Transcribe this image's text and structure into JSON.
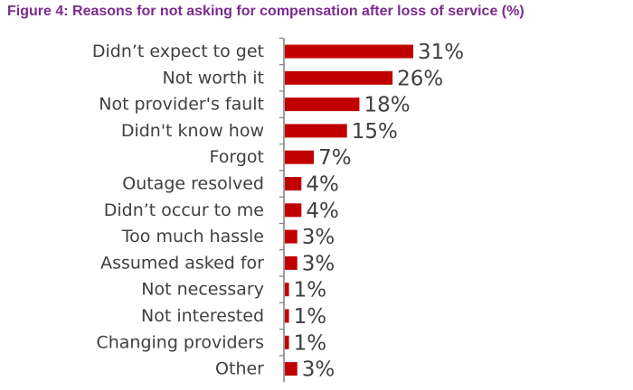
{
  "colors": {
    "title": "#7B2C8E",
    "bar": "#C00000",
    "axis": "#7F7F7F",
    "text": "#404040"
  },
  "chart_data": {
    "type": "bar",
    "orientation": "horizontal",
    "title": "Figure 4: Reasons for not asking for compensation after loss of service (%)",
    "xlabel": "",
    "ylabel": "",
    "categories": [
      "Didn’t expect to get",
      "Not worth it",
      "Not provider's fault",
      "Didn't know how",
      "Forgot",
      "Outage resolved",
      "Didn’t occur to me",
      "Too much hassle",
      "Assumed asked for",
      "Not necessary",
      "Not interested",
      "Changing providers",
      "Other"
    ],
    "values": [
      31,
      26,
      18,
      15,
      7,
      4,
      4,
      3,
      3,
      1,
      1,
      1,
      3
    ],
    "data_labels": [
      "31%",
      "26%",
      "18%",
      "15%",
      "7%",
      "4%",
      "4%",
      "3%",
      "3%",
      "1%",
      "1%",
      "1%",
      "3%"
    ],
    "xlim": [
      0,
      31
    ],
    "grid": false,
    "legend": "none"
  }
}
